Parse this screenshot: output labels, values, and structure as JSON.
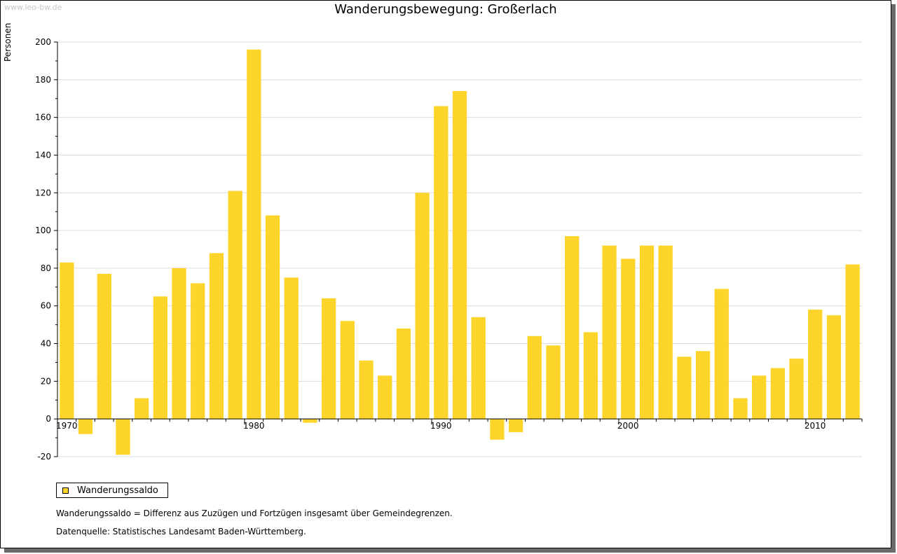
{
  "watermark": "www.leo-bw.de",
  "chart_data": {
    "type": "bar",
    "title": "Wanderungsbewegung: Großerlach",
    "ylabel": "Personen",
    "xlabel": "",
    "ylim": [
      -20,
      200
    ],
    "yticks": [
      -20,
      0,
      20,
      40,
      60,
      80,
      100,
      120,
      140,
      160,
      180,
      200
    ],
    "xtick_labels": [
      "1970",
      "1980",
      "1990",
      "2000",
      "2010"
    ],
    "grid": true,
    "legend_placement": "bottom-left",
    "categories": [
      1970,
      1971,
      1972,
      1973,
      1974,
      1975,
      1976,
      1977,
      1978,
      1979,
      1980,
      1981,
      1982,
      1983,
      1984,
      1985,
      1986,
      1987,
      1988,
      1989,
      1990,
      1991,
      1992,
      1993,
      1994,
      1995,
      1996,
      1997,
      1998,
      1999,
      2000,
      2001,
      2002,
      2003,
      2004,
      2005,
      2006,
      2007,
      2008,
      2009,
      2010,
      2011,
      2012
    ],
    "series": [
      {
        "name": "Wanderungssaldo",
        "color": "#fdd52a",
        "values": [
          83,
          -8,
          77,
          -19,
          11,
          65,
          80,
          72,
          88,
          121,
          196,
          108,
          75,
          -2,
          64,
          52,
          31,
          23,
          48,
          120,
          166,
          174,
          54,
          -11,
          -7,
          44,
          39,
          97,
          46,
          92,
          85,
          92,
          92,
          33,
          36,
          69,
          11,
          23,
          27,
          32,
          58,
          55,
          82
        ]
      }
    ]
  },
  "notes": {
    "definition": "Wanderungssaldo = Differenz aus Zuzügen und Fortzügen insgesamt über Gemeindegrenzen.",
    "source": "Datenquelle: Statistisches Landesamt Baden-Württemberg."
  }
}
